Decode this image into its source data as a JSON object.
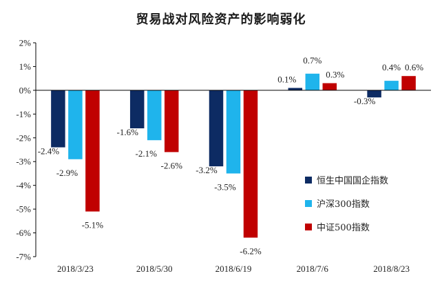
{
  "chart_data": {
    "type": "bar",
    "title": "贸易战对风险资产的影响弱化",
    "xlabel": "",
    "ylabel": "",
    "ylim": [
      -7,
      2
    ],
    "y_ticks": [
      "2%",
      "1%",
      "0%",
      "-1%",
      "-2%",
      "-3%",
      "-4%",
      "-5%",
      "-6%",
      "-7%"
    ],
    "y_tick_values": [
      2,
      1,
      0,
      -1,
      -2,
      -3,
      -4,
      -5,
      -6,
      -7
    ],
    "grid": false,
    "legend_position": "right",
    "categories": [
      "2018/3/23",
      "2018/5/30",
      "2018/6/19",
      "2018/7/6",
      "2018/8/23"
    ],
    "series": [
      {
        "name": "恒生中国国企指数",
        "color": "#0d2b63",
        "values": [
          -2.4,
          -1.6,
          -3.2,
          0.1,
          -0.3
        ],
        "labels": [
          "-2.4%",
          "-1.6%",
          "-3.2%",
          "0.1%",
          "-0.3%"
        ]
      },
      {
        "name": "沪深300指数",
        "color": "#1fb4ec",
        "values": [
          -2.9,
          -2.1,
          -3.5,
          0.7,
          0.4
        ],
        "labels": [
          "-2.9%",
          "-2.1%",
          "-3.5%",
          "0.7%",
          "0.4%"
        ]
      },
      {
        "name": "中证500指数",
        "color": "#c00000",
        "values": [
          -5.1,
          -2.6,
          -6.2,
          0.3,
          0.6
        ],
        "labels": [
          "-5.1%",
          "-2.6%",
          "-6.2%",
          "0.3%",
          "0.6%"
        ]
      }
    ]
  }
}
